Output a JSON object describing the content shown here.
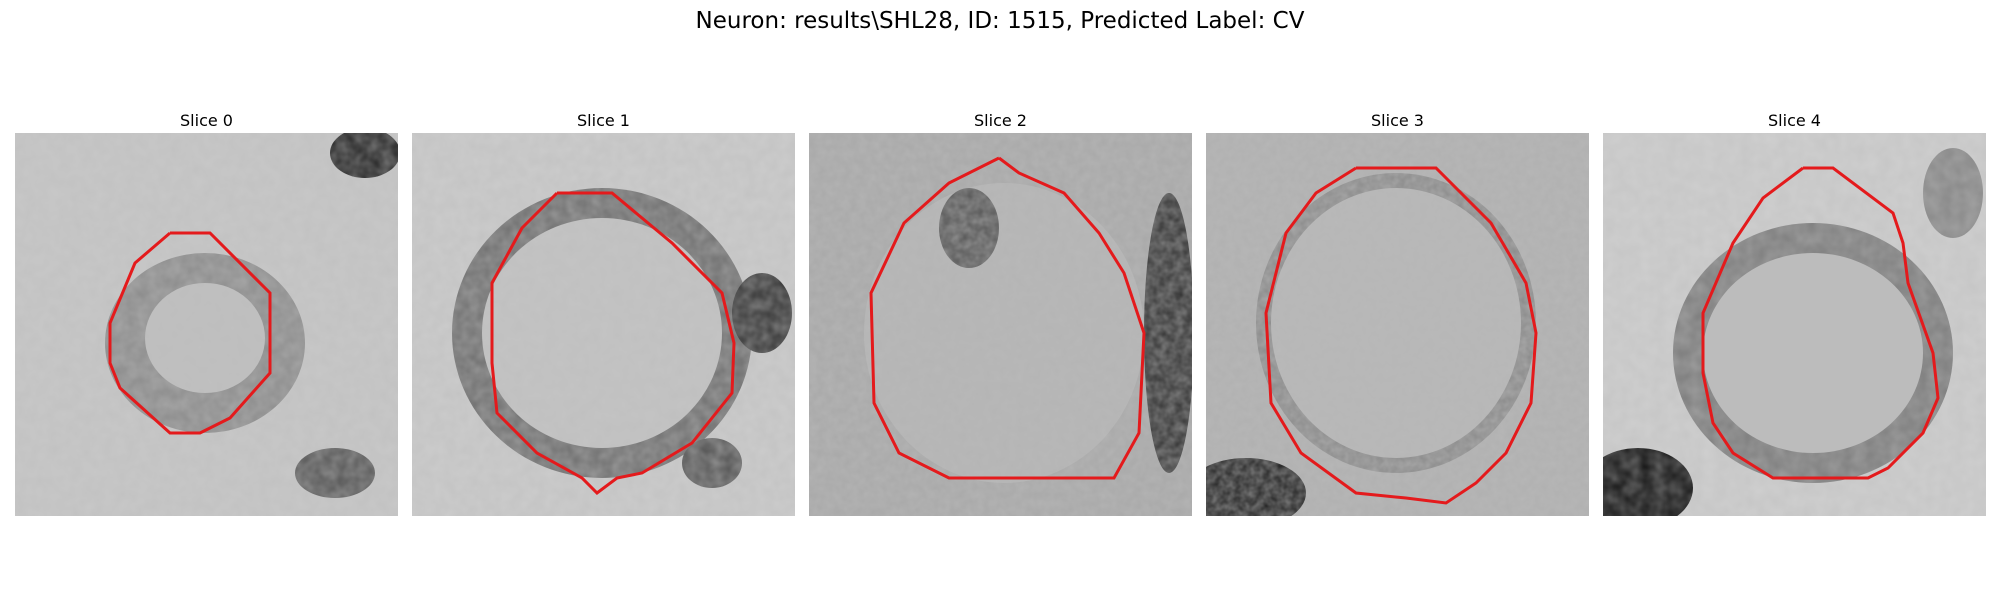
{
  "figure": {
    "title": "Neuron: results\\SHL28, ID: 1515, Predicted Label: CV"
  },
  "panels": [
    {
      "label": "Slice 0",
      "cell_size": "small",
      "dark_blob": "top-right"
    },
    {
      "label": "Slice 1",
      "cell_size": "large",
      "dark_blob": "right"
    },
    {
      "label": "Slice 2",
      "cell_size": "large",
      "dark_blob": "right-edge"
    },
    {
      "label": "Slice 3",
      "cell_size": "large",
      "dark_blob": "bottom-left"
    },
    {
      "label": "Slice 4",
      "cell_size": "medium",
      "dark_blob": "bottom-left"
    }
  ],
  "colors": {
    "contour": "#e41a1c",
    "background": "#ffffff"
  }
}
